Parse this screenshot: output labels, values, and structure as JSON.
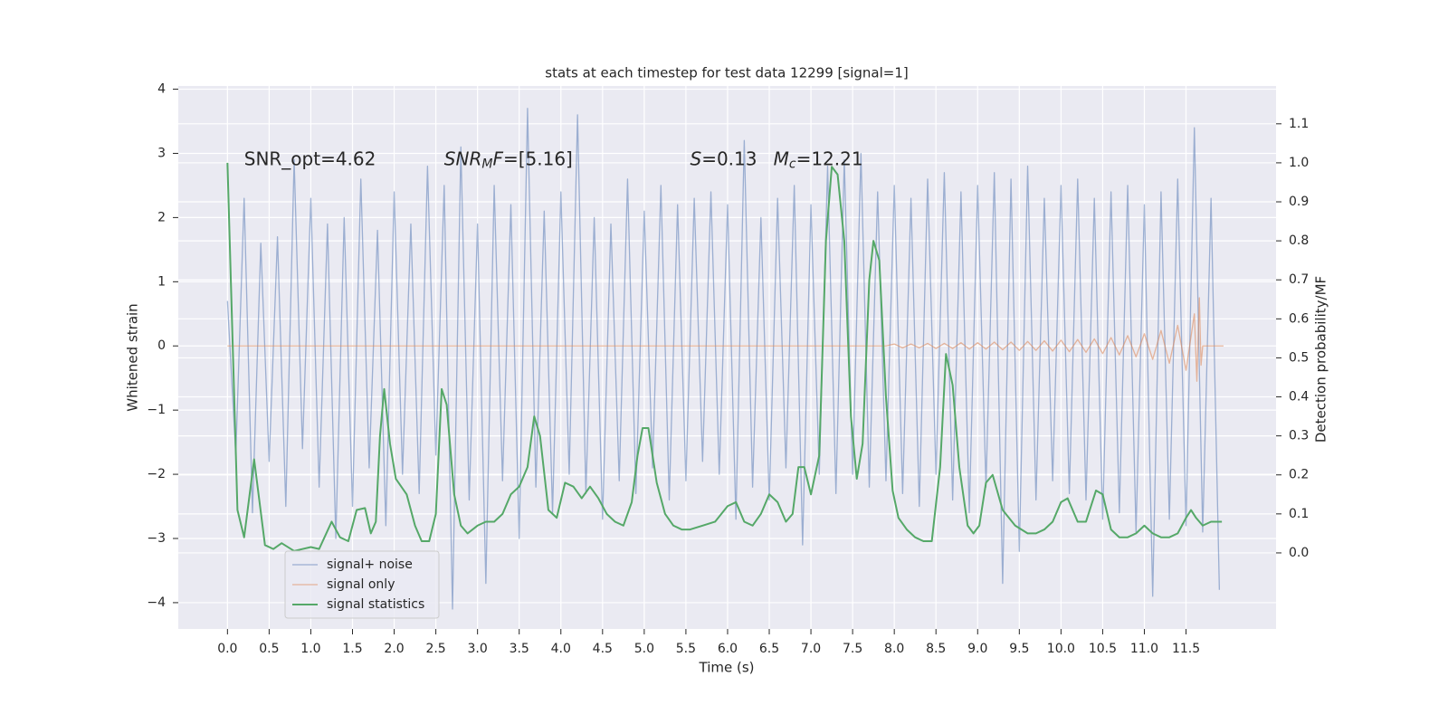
{
  "chart_data": {
    "type": "line",
    "title": "stats at each timestep for test data 12299 [signal=1]",
    "xlabel": "Time (s)",
    "ylabel": "Whitened strain",
    "y2label": "Detection probability/MF",
    "xlim": [
      -0.59,
      12.58
    ],
    "ylim": [
      -4.41,
      4.05
    ],
    "y2lim": [
      -0.195,
      1.197
    ],
    "xticks": [
      {
        "value": 0,
        "label": "0.0"
      },
      0.5,
      {
        "value": 1,
        "label": "1.0"
      },
      1.5,
      {
        "value": 2,
        "label": "2.0"
      },
      2.5,
      {
        "value": 3,
        "label": "3.0"
      },
      3.5,
      {
        "value": 4,
        "label": "4.0"
      },
      4.5,
      {
        "value": 5,
        "label": "5.0"
      },
      5.5,
      {
        "value": 6,
        "label": "6.0"
      },
      6.5,
      {
        "value": 7,
        "label": "7.0"
      },
      7.5,
      {
        "value": 8,
        "label": "8.0"
      },
      8.5,
      {
        "value": 9,
        "label": "9.0"
      },
      9.5,
      {
        "value": 10,
        "label": "10.0"
      },
      10.5,
      {
        "value": 11,
        "label": "11.0"
      },
      11.5
    ],
    "yticks": [
      {
        "value": -4,
        "label": "−4"
      },
      {
        "value": -3,
        "label": "−3"
      },
      {
        "value": -2,
        "label": "−2"
      },
      {
        "value": -1,
        "label": "−1"
      },
      0,
      1,
      2,
      3,
      4
    ],
    "y2ticks": [
      {
        "value": 0,
        "label": "0.0"
      },
      0.1,
      0.2,
      0.3,
      0.4,
      0.5,
      0.6,
      0.7,
      0.8,
      0.9,
      {
        "value": 1,
        "label": "1.0"
      },
      1.1
    ],
    "grid": true,
    "legend_loc": "lower left",
    "annotations": [
      [
        "SNR_opt=4.62"
      ],
      [
        "SNR",
        "M",
        "F",
        "=[5.16]"
      ],
      [
        "S",
        "=0.13"
      ],
      [
        "M",
        "c",
        "=12.21"
      ]
    ],
    "series": [
      {
        "name": "signal+ noise",
        "color": "#4c72b0",
        "axis": "y",
        "x": [
          0,
          0.1,
          0.2,
          0.3,
          0.4,
          0.5,
          0.6,
          0.7,
          0.8,
          0.9,
          1,
          1.1,
          1.2,
          1.3,
          1.4,
          1.5,
          1.6,
          1.7,
          1.8,
          1.9,
          2,
          2.1,
          2.2,
          2.3,
          2.4,
          2.5,
          2.6,
          2.7,
          2.8,
          2.9,
          3,
          3.1,
          3.2,
          3.3,
          3.4,
          3.5,
          3.6,
          3.7,
          3.8,
          3.9,
          4,
          4.1,
          4.2,
          4.3,
          4.4,
          4.5,
          4.6,
          4.7,
          4.8,
          4.9,
          5,
          5.1,
          5.2,
          5.3,
          5.4,
          5.5,
          5.6,
          5.7,
          5.8,
          5.9,
          6,
          6.1,
          6.2,
          6.3,
          6.4,
          6.5,
          6.6,
          6.7,
          6.8,
          6.9,
          7,
          7.1,
          7.2,
          7.3,
          7.4,
          7.5,
          7.6,
          7.7,
          7.8,
          7.9,
          8,
          8.1,
          8.2,
          8.3,
          8.4,
          8.5,
          8.6,
          8.7,
          8.8,
          8.9,
          9,
          9.1,
          9.2,
          9.3,
          9.4,
          9.5,
          9.6,
          9.7,
          9.8,
          9.9,
          10,
          10.1,
          10.2,
          10.3,
          10.4,
          10.5,
          10.6,
          10.7,
          10.8,
          10.9,
          11,
          11.1,
          11.2,
          11.3,
          11.4,
          11.5,
          11.6,
          11.7,
          11.8,
          11.9
        ],
        "values": [
          0.7,
          -1.7,
          2.3,
          -2.6,
          1.6,
          -1.8,
          1.7,
          -2.5,
          2.9,
          -1.6,
          2.3,
          -2.2,
          1.9,
          -3.0,
          2.0,
          -2.5,
          2.6,
          -1.9,
          1.8,
          -2.8,
          2.4,
          -2.0,
          1.9,
          -2.3,
          2.8,
          -1.7,
          2.5,
          -4.1,
          3.1,
          -2.4,
          1.9,
          -3.7,
          2.5,
          -2.1,
          2.2,
          -3.0,
          3.7,
          -2.2,
          2.1,
          -2.6,
          2.4,
          -2.0,
          3.6,
          -2.3,
          2.0,
          -2.7,
          1.9,
          -2.1,
          2.6,
          -2.3,
          2.1,
          -1.9,
          2.5,
          -2.4,
          2.2,
          -2.1,
          2.3,
          -1.8,
          2.4,
          -2.0,
          2.2,
          -2.7,
          3.2,
          -2.2,
          2.0,
          -2.4,
          2.3,
          -1.9,
          2.5,
          -3.1,
          2.2,
          -2.0,
          2.8,
          -2.3,
          2.9,
          -2.0,
          3.0,
          -2.2,
          2.4,
          -2.1,
          2.5,
          -2.3,
          2.3,
          -2.5,
          2.6,
          -2.0,
          2.7,
          -2.4,
          2.4,
          -2.6,
          2.5,
          -2.2,
          2.7,
          -3.7,
          2.6,
          -3.2,
          2.8,
          -2.4,
          2.3,
          -2.1,
          2.5,
          -2.3,
          2.6,
          -2.4,
          2.3,
          -2.7,
          2.4,
          -2.6,
          2.5,
          -2.9,
          2.2,
          -3.9,
          2.4,
          -2.7,
          2.6,
          -2.8,
          3.4,
          -2.9,
          2.3,
          -3.8
        ]
      },
      {
        "name": "signal only",
        "color": "#dd8452",
        "axis": "y",
        "x": [
          0,
          7.9,
          8,
          8.1,
          8.2,
          8.3,
          8.4,
          8.5,
          8.6,
          8.7,
          8.8,
          8.9,
          9,
          9.1,
          9.2,
          9.3,
          9.4,
          9.5,
          9.6,
          9.7,
          9.8,
          9.9,
          10,
          10.1,
          10.2,
          10.3,
          10.4,
          10.5,
          10.6,
          10.7,
          10.8,
          10.9,
          11,
          11.1,
          11.2,
          11.3,
          11.4,
          11.5,
          11.6,
          11.63,
          11.66,
          11.68,
          11.7,
          11.95
        ],
        "values": [
          0,
          0,
          0.03,
          -0.03,
          0.03,
          -0.03,
          0.04,
          -0.04,
          0.04,
          -0.04,
          0.05,
          -0.05,
          0.05,
          -0.05,
          0.06,
          -0.06,
          0.06,
          -0.07,
          0.07,
          -0.07,
          0.08,
          -0.08,
          0.09,
          -0.09,
          0.1,
          -0.1,
          0.11,
          -0.12,
          0.13,
          -0.14,
          0.16,
          -0.17,
          0.19,
          -0.21,
          0.24,
          -0.27,
          0.32,
          -0.38,
          0.5,
          -0.55,
          0.75,
          -0.3,
          0,
          0
        ]
      },
      {
        "name": "signal statistics",
        "color": "#55a868",
        "axis": "y2",
        "x": [
          0,
          0.12,
          0.2,
          0.32,
          0.45,
          0.55,
          0.65,
          0.8,
          1.0,
          1.1,
          1.25,
          1.35,
          1.45,
          1.55,
          1.65,
          1.72,
          1.78,
          1.83,
          1.88,
          1.95,
          2.02,
          2.15,
          2.25,
          2.33,
          2.42,
          2.5,
          2.57,
          2.63,
          2.72,
          2.8,
          2.88,
          3.0,
          3.1,
          3.2,
          3.3,
          3.4,
          3.5,
          3.6,
          3.68,
          3.75,
          3.85,
          3.95,
          4.05,
          4.15,
          4.25,
          4.35,
          4.45,
          4.55,
          4.65,
          4.75,
          4.85,
          4.92,
          4.98,
          5.05,
          5.15,
          5.25,
          5.35,
          5.45,
          5.55,
          5.7,
          5.85,
          6.0,
          6.1,
          6.2,
          6.3,
          6.4,
          6.5,
          6.6,
          6.7,
          6.78,
          6.85,
          6.92,
          7.0,
          7.1,
          7.18,
          7.25,
          7.32,
          7.4,
          7.48,
          7.55,
          7.62,
          7.7,
          7.75,
          7.82,
          7.9,
          7.98,
          8.05,
          8.15,
          8.25,
          8.35,
          8.45,
          8.55,
          8.62,
          8.7,
          8.78,
          8.88,
          8.95,
          9.02,
          9.1,
          9.18,
          9.3,
          9.45,
          9.6,
          9.7,
          9.8,
          9.9,
          10.0,
          10.08,
          10.2,
          10.3,
          10.42,
          10.5,
          10.6,
          10.7,
          10.8,
          10.9,
          11.0,
          11.1,
          11.2,
          11.3,
          11.4,
          11.5,
          11.56,
          11.62,
          11.7,
          11.8,
          11.85,
          11.93
        ],
        "values": [
          1.0,
          0.11,
          0.04,
          0.24,
          0.02,
          0.01,
          0.025,
          0.005,
          0.015,
          0.01,
          0.08,
          0.04,
          0.03,
          0.11,
          0.115,
          0.05,
          0.08,
          0.3,
          0.42,
          0.28,
          0.19,
          0.15,
          0.07,
          0.03,
          0.03,
          0.1,
          0.42,
          0.38,
          0.15,
          0.07,
          0.05,
          0.07,
          0.08,
          0.08,
          0.1,
          0.15,
          0.17,
          0.22,
          0.35,
          0.3,
          0.11,
          0.09,
          0.18,
          0.17,
          0.14,
          0.17,
          0.14,
          0.1,
          0.08,
          0.07,
          0.13,
          0.25,
          0.32,
          0.32,
          0.18,
          0.1,
          0.07,
          0.06,
          0.06,
          0.07,
          0.08,
          0.12,
          0.13,
          0.08,
          0.07,
          0.1,
          0.15,
          0.13,
          0.08,
          0.1,
          0.22,
          0.22,
          0.15,
          0.25,
          0.8,
          0.99,
          0.97,
          0.8,
          0.35,
          0.19,
          0.28,
          0.7,
          0.8,
          0.75,
          0.4,
          0.16,
          0.09,
          0.06,
          0.04,
          0.03,
          0.03,
          0.22,
          0.51,
          0.43,
          0.22,
          0.07,
          0.05,
          0.07,
          0.18,
          0.2,
          0.11,
          0.07,
          0.05,
          0.05,
          0.06,
          0.08,
          0.13,
          0.14,
          0.08,
          0.08,
          0.16,
          0.15,
          0.06,
          0.04,
          0.04,
          0.05,
          0.07,
          0.05,
          0.04,
          0.04,
          0.05,
          0.09,
          0.11,
          0.09,
          0.07,
          0.08,
          0.08,
          0.08
        ]
      }
    ]
  }
}
